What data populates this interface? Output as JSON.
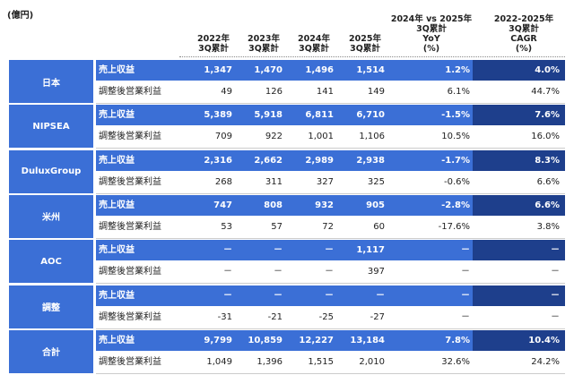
{
  "unit": "(億円)",
  "columns": [
    {
      "lines": [
        "2022年",
        "3Q累計"
      ]
    },
    {
      "lines": [
        "2023年",
        "3Q累計"
      ]
    },
    {
      "lines": [
        "2024年",
        "3Q累計"
      ]
    },
    {
      "lines": [
        "2025年",
        "3Q累計"
      ]
    },
    {
      "lines": [
        "2024年 vs 2025年",
        "3Q累計",
        "YoY",
        "(%)"
      ]
    },
    {
      "lines": [
        "2022-2025年",
        "3Q累計",
        "CAGR",
        "(%)"
      ]
    }
  ],
  "segments": [
    {
      "name": "日本",
      "rows": [
        {
          "label": "売上収益",
          "cells": [
            "1,347",
            "1,470",
            "1,496",
            "1,514",
            "1.2%",
            "4.0%"
          ]
        },
        {
          "label": "調整後営業利益",
          "cells": [
            "49",
            "126",
            "141",
            "149",
            "6.1%",
            "44.7%"
          ]
        }
      ]
    },
    {
      "name": "NIPSEA",
      "rows": [
        {
          "label": "売上収益",
          "cells": [
            "5,389",
            "5,918",
            "6,811",
            "6,710",
            "-1.5%",
            "7.6%"
          ]
        },
        {
          "label": "調整後営業利益",
          "cells": [
            "709",
            "922",
            "1,001",
            "1,106",
            "10.5%",
            "16.0%"
          ]
        }
      ]
    },
    {
      "name": "DuluxGroup",
      "rows": [
        {
          "label": "売上収益",
          "cells": [
            "2,316",
            "2,662",
            "2,989",
            "2,938",
            "-1.7%",
            "8.3%"
          ]
        },
        {
          "label": "調整後営業利益",
          "cells": [
            "268",
            "311",
            "327",
            "325",
            "-0.6%",
            "6.6%"
          ]
        }
      ]
    },
    {
      "name": "米州",
      "rows": [
        {
          "label": "売上収益",
          "cells": [
            "747",
            "808",
            "932",
            "905",
            "-2.8%",
            "6.6%"
          ]
        },
        {
          "label": "調整後営業利益",
          "cells": [
            "53",
            "57",
            "72",
            "60",
            "-17.6%",
            "3.8%"
          ]
        }
      ]
    },
    {
      "name": "AOC",
      "rows": [
        {
          "label": "売上収益",
          "cells": [
            "－",
            "－",
            "－",
            "1,117",
            "－",
            "－"
          ]
        },
        {
          "label": "調整後営業利益",
          "cells": [
            "－",
            "－",
            "－",
            "397",
            "－",
            "－"
          ]
        }
      ]
    },
    {
      "name": "調整",
      "rows": [
        {
          "label": "売上収益",
          "cells": [
            "－",
            "－",
            "－",
            "－",
            "－",
            "－"
          ]
        },
        {
          "label": "調整後営業利益",
          "cells": [
            "-31",
            "-21",
            "-25",
            "-27",
            "－",
            "－"
          ]
        }
      ]
    },
    {
      "name": "合計",
      "rows": [
        {
          "label": "売上収益",
          "cells": [
            "9,799",
            "10,859",
            "12,227",
            "13,184",
            "7.8%",
            "10.4%"
          ]
        },
        {
          "label": "調整後営業利益",
          "cells": [
            "1,049",
            "1,396",
            "1,515",
            "2,010",
            "32.6%",
            "24.2%"
          ]
        }
      ]
    }
  ]
}
